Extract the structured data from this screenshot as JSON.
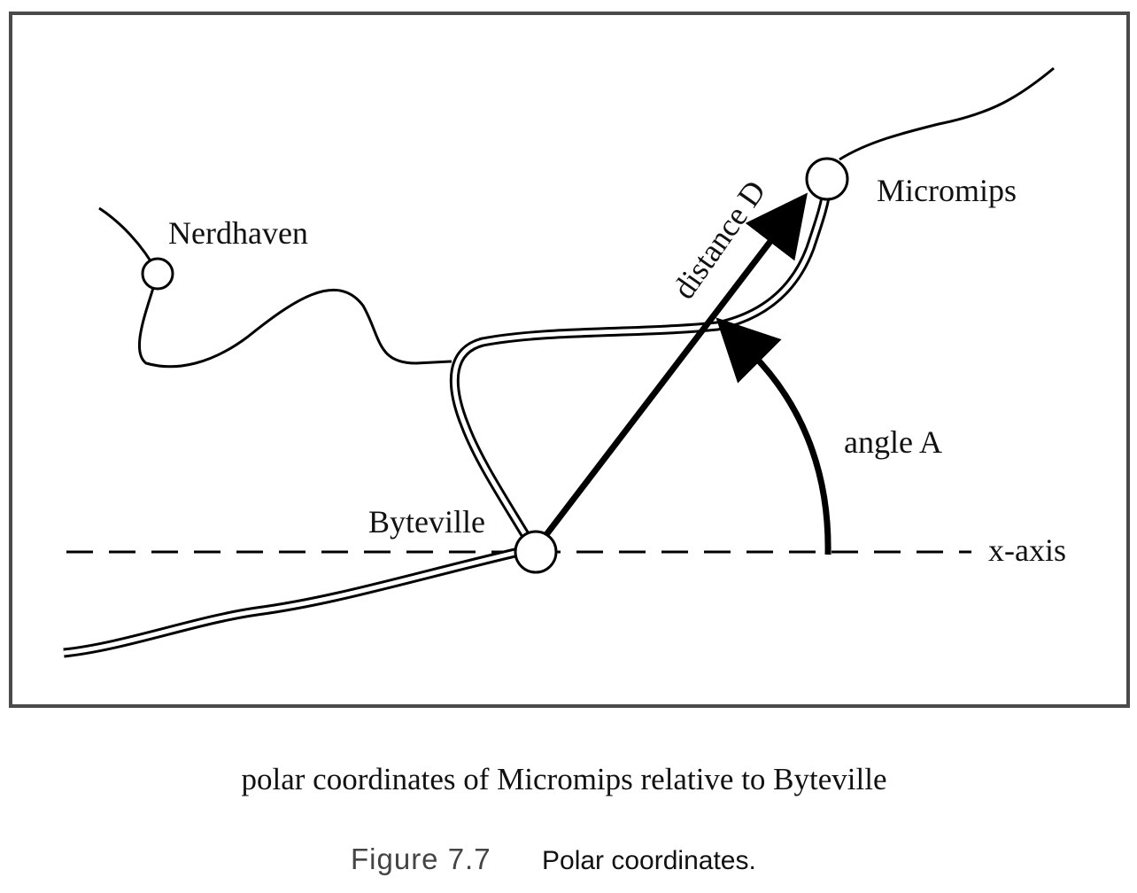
{
  "diagram": {
    "cities": [
      {
        "id": "nerdhaven",
        "label": "Nerdhaven"
      },
      {
        "id": "micromips",
        "label": "Micromips"
      },
      {
        "id": "byteville",
        "label": "Byteville"
      }
    ],
    "labels": {
      "distance": "distance D",
      "angle": "angle A",
      "x_axis": "x-axis"
    },
    "caption": "polar coordinates of Micromips relative to Byteville"
  },
  "figure": {
    "number": "Figure 7.7",
    "title": "Polar coordinates."
  }
}
